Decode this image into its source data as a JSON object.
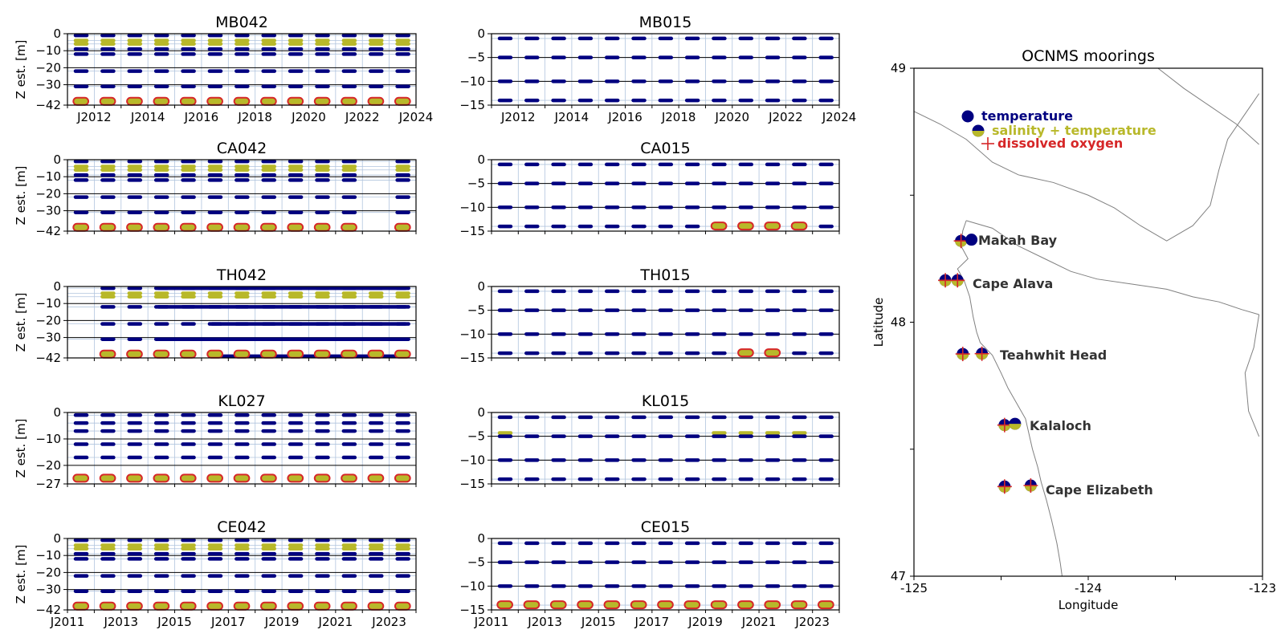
{
  "chart_data": [
    {
      "type": "scatter",
      "title": "MB042",
      "ylabel": "Z est. [m]",
      "ylim": [
        -42,
        0
      ],
      "yticks": [
        0,
        -10,
        -20,
        -30,
        -42
      ],
      "ytick_labels": [
        "0",
        "−10",
        "−20",
        "−30",
        "−42"
      ],
      "xlim": [
        2011,
        2024
      ],
      "xtick_labels": [
        "J2012",
        "J2014",
        "J2016",
        "J2018",
        "J2020",
        "J2022",
        "J2024"
      ],
      "instrument_depths": [
        -1,
        -4,
        -6,
        -9,
        -12,
        -22,
        -31
      ],
      "bottom_depth": -40,
      "deployment_years": [
        2011,
        2012,
        2013,
        2014,
        2015,
        2016,
        2017,
        2018,
        2019,
        2020,
        2021,
        2022,
        2023
      ]
    },
    {
      "type": "scatter",
      "title": "MB015",
      "ylabel": "",
      "ylim": [
        -15,
        0
      ],
      "yticks": [
        0,
        -5,
        -10,
        -15
      ],
      "ytick_labels": [
        "0",
        "−5",
        "−10",
        "−15"
      ],
      "xlim": [
        2011,
        2024
      ],
      "xtick_labels": [
        "J2012",
        "J2014",
        "J2016",
        "J2018",
        "J2020",
        "J2022",
        "J2024"
      ],
      "instrument_depths": [
        -1,
        -5,
        -10,
        -14
      ],
      "bottom_depth": null,
      "deployment_years": [
        2011,
        2012,
        2013,
        2014,
        2015,
        2016,
        2017,
        2018,
        2019,
        2020,
        2021,
        2022,
        2023
      ]
    },
    {
      "type": "scatter",
      "title": "CA042",
      "ylabel": "Z est. [m]",
      "ylim": [
        -42,
        0
      ],
      "yticks": [
        0,
        -10,
        -20,
        -30,
        -42
      ],
      "ytick_labels": [
        "0",
        "−10",
        "−20",
        "−30",
        "−42"
      ],
      "xlim": [
        2011,
        2024
      ],
      "xtick_labels": [],
      "instrument_depths": [
        -1,
        -4,
        -6,
        -9,
        -12,
        -22,
        -31
      ],
      "bottom_depth": -40,
      "deployment_years": [
        2011,
        2012,
        2013,
        2014,
        2015,
        2016,
        2017,
        2018,
        2019,
        2020,
        2021,
        2023
      ]
    },
    {
      "type": "scatter",
      "title": "CA015",
      "ylabel": "",
      "ylim": [
        -15,
        0
      ],
      "yticks": [
        0,
        -5,
        -10,
        -15
      ],
      "ytick_labels": [
        "0",
        "−5",
        "−10",
        "−15"
      ],
      "xlim": [
        2011,
        2024
      ],
      "xtick_labels": [],
      "instrument_depths": [
        -1,
        -5,
        -10,
        -14
      ],
      "bottom_depth": -14,
      "bottom_years": [
        2019,
        2020,
        2021,
        2022
      ],
      "deployment_years": [
        2011,
        2012,
        2013,
        2014,
        2015,
        2016,
        2017,
        2018,
        2019,
        2020,
        2021,
        2022,
        2023
      ]
    },
    {
      "type": "scatter",
      "title": "TH042",
      "ylabel": "Z est. [m]",
      "ylim": [
        -42,
        0
      ],
      "yticks": [
        0,
        -10,
        -20,
        -30,
        -42
      ],
      "ytick_labels": [
        "0",
        "−10",
        "−20",
        "−30",
        "−42"
      ],
      "xlim": [
        2011,
        2024
      ],
      "xtick_labels": [],
      "instrument_depths": [
        -1,
        -4,
        -6,
        -12,
        -22,
        -31
      ],
      "bottom_depth": -40,
      "deployment_years": [
        2012,
        2013,
        2014,
        2015,
        2016,
        2017,
        2018,
        2019,
        2020,
        2021,
        2022,
        2023
      ]
    },
    {
      "type": "scatter",
      "title": "TH015",
      "ylabel": "",
      "ylim": [
        -15,
        0
      ],
      "yticks": [
        0,
        -5,
        -10,
        -15
      ],
      "ytick_labels": [
        "0",
        "−5",
        "−10",
        "−15"
      ],
      "xlim": [
        2011,
        2024
      ],
      "xtick_labels": [],
      "instrument_depths": [
        -1,
        -5,
        -10,
        -14
      ],
      "bottom_depth": -14,
      "bottom_years": [
        2020,
        2021
      ],
      "deployment_years": [
        2011,
        2012,
        2013,
        2014,
        2015,
        2016,
        2017,
        2018,
        2019,
        2020,
        2021,
        2022,
        2023
      ]
    },
    {
      "type": "scatter",
      "title": "KL027",
      "ylabel": "Z est. [m]",
      "ylim": [
        -27,
        0
      ],
      "yticks": [
        0,
        -10,
        -20,
        -27
      ],
      "ytick_labels": [
        "0",
        "−10",
        "−20",
        "−27"
      ],
      "xlim": [
        2011,
        2024
      ],
      "xtick_labels": [],
      "instrument_depths": [
        -1,
        -4,
        -7,
        -12,
        -17
      ],
      "bottom_depth": -25,
      "deployment_years": [
        2011,
        2012,
        2013,
        2014,
        2015,
        2016,
        2017,
        2018,
        2019,
        2020,
        2021,
        2022,
        2023
      ]
    },
    {
      "type": "scatter",
      "title": "KL015",
      "ylabel": "",
      "ylim": [
        -15,
        0
      ],
      "yticks": [
        0,
        -5,
        -10,
        -15
      ],
      "ytick_labels": [
        "0",
        "−5",
        "−10",
        "−15"
      ],
      "xlim": [
        2011,
        2024
      ],
      "xtick_labels": [],
      "instrument_depths": [
        -1,
        -4.3,
        -5,
        -10,
        -14
      ],
      "bottom_depth": null,
      "deployment_years": [
        2011,
        2012,
        2013,
        2014,
        2015,
        2016,
        2017,
        2018,
        2019,
        2020,
        2021,
        2022,
        2023
      ]
    },
    {
      "type": "scatter",
      "title": "CE042",
      "ylabel": "Z est. [m]",
      "ylim": [
        -42,
        0
      ],
      "yticks": [
        0,
        -10,
        -20,
        -30,
        -42
      ],
      "ytick_labels": [
        "0",
        "−10",
        "−20",
        "−30",
        "−42"
      ],
      "xlim": [
        2011,
        2024
      ],
      "xtick_labels": [
        "J2011",
        "J2013",
        "J2015",
        "J2017",
        "J2019",
        "J2021",
        "J2023"
      ],
      "instrument_depths": [
        -1,
        -4,
        -6,
        -9,
        -12,
        -22,
        -31
      ],
      "bottom_depth": -40,
      "deployment_years": [
        2011,
        2012,
        2013,
        2014,
        2015,
        2016,
        2017,
        2018,
        2019,
        2020,
        2021,
        2022,
        2023
      ]
    },
    {
      "type": "scatter",
      "title": "CE015",
      "ylabel": "",
      "ylim": [
        -15,
        0
      ],
      "yticks": [
        0,
        -5,
        -10,
        -15
      ],
      "ytick_labels": [
        "0",
        "−5",
        "−10",
        "−15"
      ],
      "xlim": [
        2011,
        2024
      ],
      "xtick_labels": [
        "J2011",
        "J2013",
        "J2015",
        "J2017",
        "J2019",
        "J2021",
        "J2023"
      ],
      "instrument_depths": [
        -1,
        -5,
        -10,
        -14
      ],
      "bottom_depth": -14,
      "bottom_years": [
        2011,
        2012,
        2013,
        2014,
        2015,
        2016,
        2017,
        2018,
        2019,
        2020,
        2021,
        2022,
        2023
      ],
      "deployment_years": [
        2011,
        2012,
        2013,
        2014,
        2015,
        2016,
        2017,
        2018,
        2019,
        2020,
        2021,
        2022,
        2023
      ]
    },
    {
      "type": "map",
      "title": "OCNMS moorings",
      "xlabel": "Longitude",
      "ylabel": "Latitude",
      "xlim": [
        -125,
        -123
      ],
      "ylim": [
        47,
        49
      ],
      "xtick_labels": [
        "-125",
        "-124",
        "-123"
      ],
      "ytick_labels": [
        "47",
        "48",
        "49"
      ],
      "legend": [
        {
          "label": "temperature",
          "color": "#000080",
          "marker": "circle"
        },
        {
          "label": "salinity + temperature",
          "color": "#b8b82a",
          "marker": "half-circle"
        },
        {
          "label": "dissolved oxygen",
          "color": "#d62728",
          "marker": "plus"
        }
      ],
      "locations": [
        {
          "name": "Makah Bay",
          "moorings": [
            {
              "lon": -124.73,
              "lat": 48.32,
              "type": "all"
            },
            {
              "lon": -124.67,
              "lat": 48.325,
              "type": "temperature"
            }
          ]
        },
        {
          "name": "Cape Alava",
          "moorings": [
            {
              "lon": -124.82,
              "lat": 48.165,
              "type": "all"
            },
            {
              "lon": -124.75,
              "lat": 48.165,
              "type": "all"
            }
          ]
        },
        {
          "name": "Teahwhit Head",
          "moorings": [
            {
              "lon": -124.72,
              "lat": 47.875,
              "type": "all"
            },
            {
              "lon": -124.61,
              "lat": 47.876,
              "type": "all"
            }
          ]
        },
        {
          "name": "Kalaloch",
          "moorings": [
            {
              "lon": -124.48,
              "lat": 47.595,
              "type": "all"
            },
            {
              "lon": -124.42,
              "lat": 47.6,
              "type": "salinity"
            }
          ]
        },
        {
          "name": "Cape Elizabeth",
          "moorings": [
            {
              "lon": -124.48,
              "lat": 47.353,
              "type": "all"
            },
            {
              "lon": -124.33,
              "lat": 47.357,
              "type": "all"
            }
          ]
        }
      ]
    }
  ],
  "colors": {
    "temperature": "#000080",
    "salinity": "#b8b82a",
    "oxygen": "#d62728",
    "grid": "#b0c4de",
    "coast": "#808080"
  }
}
